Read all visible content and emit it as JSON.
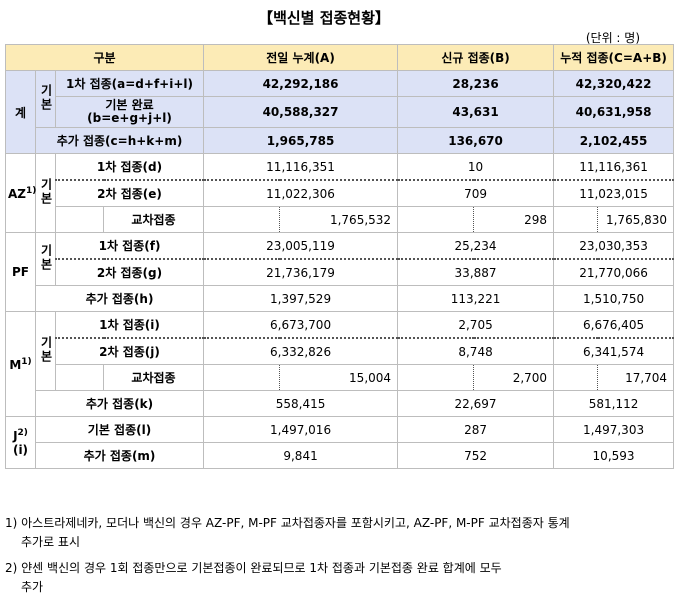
{
  "title": "【백신별 접종현황】",
  "unit": "(단위 : 명)",
  "headers": {
    "category": "구분",
    "prev": "전일 누계(A)",
    "new": "신규 접종(B)",
    "cum": "누적 접종(C=A+B)"
  },
  "total": {
    "label": "계",
    "basic_label": "기본",
    "rows": [
      {
        "label": "1차 접종(a=d+f+i+l)",
        "prev": "42,292,186",
        "new": "28,236",
        "cum": "42,320,422"
      },
      {
        "label": "기본 완료",
        "label2": "(b=e+g+j+l)",
        "prev": "40,588,327",
        "new": "43,631",
        "cum": "40,631,958"
      },
      {
        "label": "추가 접종(c=h+k+m)",
        "prev": "1,965,785",
        "new": "136,670",
        "cum": "2,102,455"
      }
    ]
  },
  "az": {
    "label": "AZ",
    "sup": "1)",
    "basic_label": "기본",
    "first": {
      "label": "1차 접종(d)",
      "prev": "11,116,351",
      "new": "10",
      "cum": "11,116,361"
    },
    "second": {
      "label": "2차 접종(e)",
      "prev": "11,022,306",
      "new": "709",
      "cum": "11,023,015"
    },
    "cross": {
      "label": "교차접종",
      "prev": "1,765,532",
      "new": "298",
      "cum": "1,765,830"
    }
  },
  "pf": {
    "label": "PF",
    "basic_label": "기본",
    "first": {
      "label": "1차 접종(f)",
      "prev": "23,005,119",
      "new": "25,234",
      "cum": "23,030,353"
    },
    "second": {
      "label": "2차 접종(g)",
      "prev": "21,736,179",
      "new": "33,887",
      "cum": "21,770,066"
    },
    "booster": {
      "label": "추가 접종(h)",
      "prev": "1,397,529",
      "new": "113,221",
      "cum": "1,510,750"
    }
  },
  "m": {
    "label": "M",
    "sup": "1)",
    "basic_label": "기본",
    "first": {
      "label": "1차 접종(i)",
      "prev": "6,673,700",
      "new": "2,705",
      "cum": "6,676,405"
    },
    "second": {
      "label": "2차 접종(j)",
      "prev": "6,332,826",
      "new": "8,748",
      "cum": "6,341,574"
    },
    "cross": {
      "label": "교차접종",
      "prev": "15,004",
      "new": "2,700",
      "cum": "17,704"
    },
    "booster": {
      "label": "추가 접종(k)",
      "prev": "558,415",
      "new": "22,697",
      "cum": "581,112"
    }
  },
  "j": {
    "label": "J",
    "sup": "2)",
    "label2": "(i)",
    "basic": {
      "label": "기본 접종(l)",
      "prev": "1,497,016",
      "new": "287",
      "cum": "1,497,303"
    },
    "booster": {
      "label": "추가 접종(m)",
      "prev": "9,841",
      "new": "752",
      "cum": "10,593"
    }
  },
  "footnotes": {
    "f1a": "1) 아스트라제네카, 모더나 백신의 경우 AZ-PF, M-PF 교차접종자를 포함시키고, AZ-PF, M-PF 교차접종자 통계",
    "f1b": "추가로 표시",
    "f2a": "2) 얀센 백신의 경우 1회 접종만으로 기본접종이 완료되므로 1차 접종과 기본접종 완료 합계에 모두",
    "f2b": "추가"
  }
}
